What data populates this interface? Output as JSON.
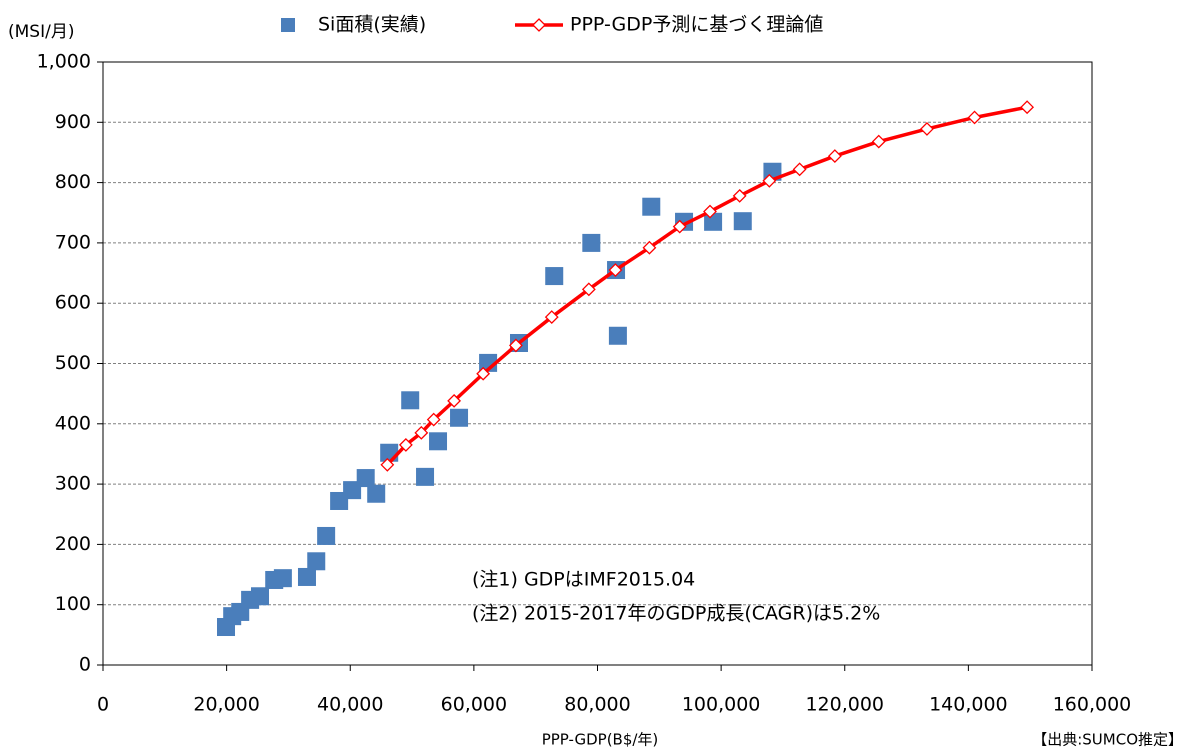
{
  "chart_data": {
    "type": "scatter",
    "y_label": "(MSI/月)",
    "x_label": "PPP-GDP(B$/年)",
    "source": "【出典:SUMCO推定】",
    "annotations": [
      "(注1) GDPはIMF2015.04",
      "(注2) 2015-2017年のGDP成長(CAGR)は5.2%"
    ],
    "xlim": [
      0,
      160000
    ],
    "ylim": [
      0,
      1000
    ],
    "xticks": [
      0,
      {
        "value": 20000,
        "label": "20,000"
      },
      {
        "value": 40000,
        "label": "40,000"
      },
      {
        "value": 60000,
        "label": "60,000"
      },
      {
        "value": 80000,
        "label": "80,000"
      },
      {
        "value": 100000,
        "label": "100,000"
      },
      {
        "value": 120000,
        "label": "120,000"
      },
      {
        "value": 140000,
        "label": "140,000"
      },
      {
        "value": 160000,
        "label": "160,000"
      }
    ],
    "yticks": [
      0,
      100,
      200,
      300,
      400,
      500,
      600,
      700,
      800,
      900,
      {
        "value": 1000,
        "label": "1,000"
      }
    ],
    "grid": true,
    "legend": "top",
    "series": [
      {
        "name": "Si面積(実績)",
        "color": "#4a7ebb",
        "marker": "square",
        "line": false,
        "x": [
          19900,
          20900,
          22200,
          23800,
          25400,
          27700,
          29100,
          33000,
          34500,
          36100,
          38200,
          40300,
          42500,
          44200,
          46300,
          49700,
          52100,
          54200,
          57600,
          62300,
          67300,
          73000,
          79000,
          83000,
          83300,
          88700,
          94000,
          98700,
          103500,
          108300
        ],
        "values": [
          63,
          81,
          88,
          108,
          114,
          141,
          144,
          146,
          172,
          214,
          272,
          290,
          310,
          284,
          352,
          439,
          312,
          371,
          410,
          501,
          534,
          645,
          700,
          655,
          546,
          760,
          735,
          735,
          736,
          818
        ]
      },
      {
        "name": "PPP-GDP予測に基づく理論値",
        "color": "#ff0000",
        "marker": "diamond",
        "line": true,
        "x": [
          46000,
          49000,
          51500,
          53500,
          56800,
          61500,
          66800,
          72600,
          78600,
          82900,
          88400,
          93300,
          98200,
          103000,
          107800,
          112700,
          118400,
          125500,
          133300,
          141000,
          149500
        ],
        "values": [
          332,
          365,
          385,
          407,
          438,
          483,
          530,
          577,
          623,
          655,
          692,
          727,
          752,
          778,
          803,
          822,
          844,
          868,
          889,
          908,
          925
        ]
      }
    ]
  }
}
